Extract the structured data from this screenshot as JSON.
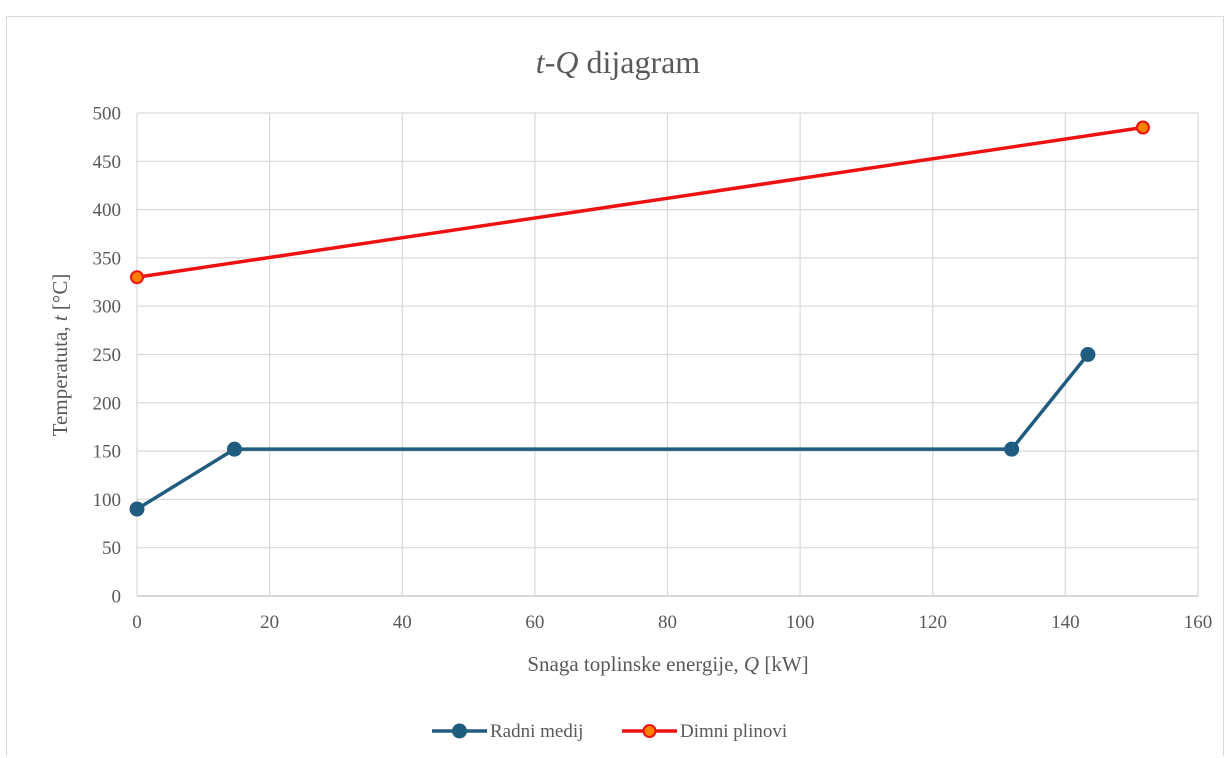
{
  "chart_data": {
    "type": "line",
    "title": {
      "italic": "t-Q",
      "rest": " dijagram"
    },
    "xlabel": {
      "prefix": "Snaga toplinske energije, ",
      "italic": "Q",
      "suffix": " [kW]"
    },
    "ylabel": {
      "prefix": "Temperatuta, ",
      "italic": "t",
      "suffix": " [°C]"
    },
    "xlim": [
      0,
      160
    ],
    "ylim": [
      0,
      500
    ],
    "x_ticks": [
      0,
      20,
      40,
      60,
      80,
      100,
      120,
      140,
      160
    ],
    "y_ticks": [
      0,
      50,
      100,
      150,
      200,
      250,
      300,
      350,
      400,
      450,
      500
    ],
    "grid": true,
    "legend_position": "bottom",
    "series": [
      {
        "name": "Radni medij",
        "color": "#1f5c80",
        "marker_fill": "#1f5c80",
        "points": [
          {
            "x": 0,
            "y": 90
          },
          {
            "x": 14.7,
            "y": 152
          },
          {
            "x": 131.9,
            "y": 152
          },
          {
            "x": 143.4,
            "y": 250
          }
        ]
      },
      {
        "name": "Dimni plinovi",
        "color": "#ee1111",
        "marker_fill": "#ff7f00",
        "points": [
          {
            "x": 0,
            "y": 330
          },
          {
            "x": 151.7,
            "y": 485
          }
        ]
      }
    ]
  }
}
